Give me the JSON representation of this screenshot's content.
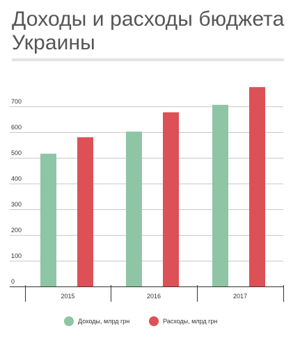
{
  "title": "Доходы и расходы бюджета Украины",
  "colors": {
    "income": "#8ec5a5",
    "expense": "#dd5056",
    "grid": "#c8c8c8",
    "axis": "#333333",
    "title": "#555555"
  },
  "chart_data": {
    "type": "bar",
    "title": "Доходы и расходы бюджета Украины",
    "categories": [
      "2015",
      "2016",
      "2017"
    ],
    "series": [
      {
        "name": "Доходы, млрд грн",
        "values": [
          516,
          602,
          706
        ],
        "color": "#8ec5a5"
      },
      {
        "name": "Расходы, млрд грн",
        "values": [
          580,
          677,
          775
        ],
        "color": "#dd5056"
      }
    ],
    "yticks": [
      0,
      100,
      200,
      300,
      400,
      500,
      600,
      700
    ],
    "ylim": [
      0,
      800
    ],
    "grid": true,
    "legend_position": "bottom",
    "xlabel": "",
    "ylabel": ""
  }
}
